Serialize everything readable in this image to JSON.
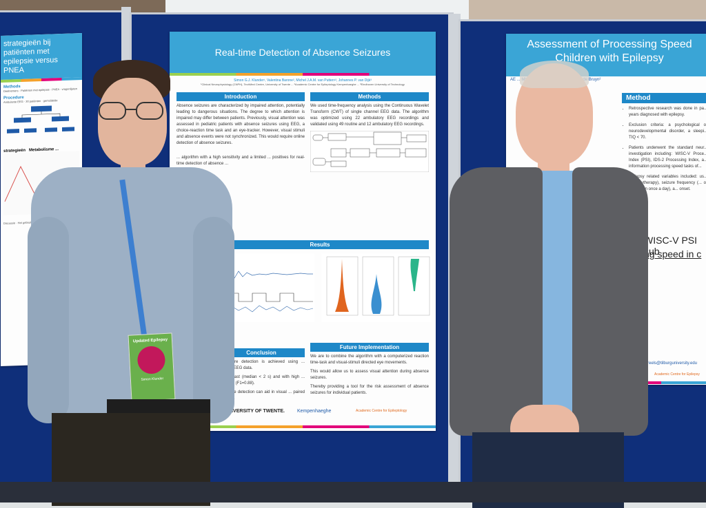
{
  "poster_center": {
    "title": "Real-time Detection of Absence Seizures",
    "authors": "Simon G.J. Klunder¹, Valentina Barone², Michel J.A.M. van Putten¹², Johannes P. van Dijk³",
    "sections": {
      "introduction": "Introduction",
      "methods": "Methods",
      "results": "Results",
      "conclusion": "Conclusion",
      "future": "Future Implementation"
    },
    "intro_text": "Absence seizures are characterized by impaired attention, potentially leading to dangerous situations. The degree to which attention is impaired may differ between patients. Previously, visual attention was assessed in pediatric patients with absence seizures using EEG, a choice-reaction time task and an eye-tracker. However, visual stimuli and absence events were not synchronized. This would require online detection of absence seizures.",
    "intro_text_2": "... algorithm with a high sensitivity and a limited ... positives for real-time detection of absence ...",
    "methods_text": "We used time-frequency analysis using the Continuous Wavelet Transform (CWT) of single channel EEG data. The algorithm was optimized using 22 ambulatory EEG recordings and validated using 49 routine and 12 ambulatory EEG recordings.",
    "future_items": [
      "We are to combine the algorithm with a computerized reaction time-task and visual-stimuli directed eye movements.",
      "This would allow us to assess visual attention during absence seizures.",
      "Thereby providing a tool for the risk assessment of absence seizures for individual patients."
    ],
    "conclusion_items": [
      "... seizure detection is achieved using ... channel EEG data.",
      "... cted fast (median < 2 s) and with high ... accuracy (F1=0.88).",
      "... seizure detection can aid in visual ... paired attention."
    ],
    "logos": [
      "UNIVERSITY OF TWENTE.",
      "Kempenhaeghe",
      "Academic Centre for Epileptology"
    ]
  },
  "poster_right": {
    "title_line1": "Assessment of Processing Speed",
    "title_line2": "Children with Epilepsy",
    "authors_fragment": "AE ... MHJA Debeij², JS Verhoeven², G de Bruyn²",
    "method_label": "Method",
    "bullets": [
      "Retrospective research was done in pa... years diagnosed with epilepsy.",
      "Exclusion criteria: a psychological or neurodevelopmental disorder, a sleepi... TIQ < 70.",
      "Patients underwent the standard neur... investigation including: WISC-V Proce... Index (PSI), IDS-2 Processing Index, a... information processing speed tasks of...",
      "Epilepsy related variables included: us... (or polytherapy), seizure frequency (... or more than once a day), a... onset."
    ],
    "big_text_1": "WISC-V PSI sub",
    "big_text_2": "ng speed in c",
    "email_fragment": "...reels@tilburguniversity.edu",
    "logo": "Academic Centre for Epilepsy"
  },
  "poster_left": {
    "title_fragment": "strategieën bij patiënten met epilepsie versus PNEA",
    "methods_label": "Methods",
    "procedure_label": "Procedure",
    "sub_labels": [
      "strategieën",
      "Metabolisme ..."
    ]
  },
  "badge": {
    "event": "Updated Epilepsy",
    "name": "Simon Klunder"
  }
}
